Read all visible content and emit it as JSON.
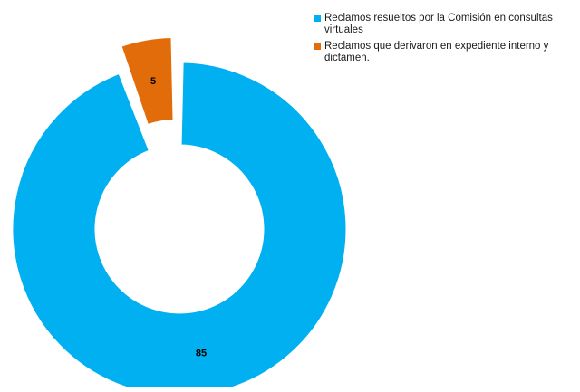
{
  "chart_data": {
    "type": "pie",
    "variant": "donut-exploded",
    "title": "",
    "categories": [
      "Reclamos resueltos por la Comisión en consultas virtuales",
      "Reclamos que derivaron en expediente interno y dictamen."
    ],
    "values": [
      85,
      5
    ],
    "colors": [
      "#00b0f0",
      "#e36c0a"
    ],
    "legend_position": "right"
  }
}
